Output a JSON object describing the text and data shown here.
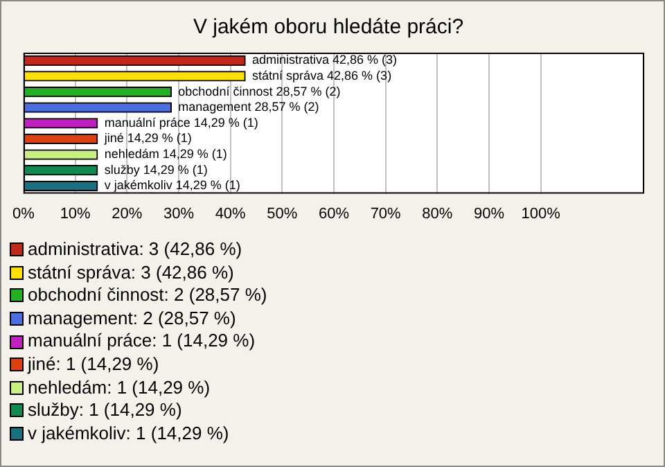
{
  "chart_data": {
    "type": "bar",
    "orientation": "horizontal",
    "title": "V jakém oboru hledáte práci?",
    "categories": [
      "administrativa",
      "státní správa",
      "obchodní činnost",
      "management",
      "manuální práce",
      "jiné",
      "nehledám",
      "služby",
      "v jakémkoliv"
    ],
    "values": [
      42.86,
      42.86,
      28.57,
      28.57,
      14.29,
      14.29,
      14.29,
      14.29,
      14.29
    ],
    "colors": [
      "#c0281c",
      "#ffe000",
      "#20b020",
      "#4a6fe0",
      "#c020c0",
      "#e04010",
      "#c8f080",
      "#108850",
      "#1a7080"
    ],
    "value_labels": [
      "42,86 % (3)",
      "42,86 % (3)",
      "28,57 % (2)",
      "28,57 % (2)",
      "14,29 % (1)",
      "14,29 % (1)",
      "14,29 % (1)",
      "14,29 % (1)",
      "14,29 % (1)"
    ],
    "xlim": [
      0,
      120
    ],
    "xticks": [
      {
        "value": 0,
        "label": "0%"
      },
      {
        "value": 10,
        "label": "10%"
      },
      {
        "value": 20,
        "label": "20%"
      },
      {
        "value": 30,
        "label": "30%"
      },
      {
        "value": 40,
        "label": "40%"
      },
      {
        "value": 50,
        "label": "50%"
      },
      {
        "value": 60,
        "label": "60%"
      },
      {
        "value": 70,
        "label": "70%"
      },
      {
        "value": 80,
        "label": "80%"
      },
      {
        "value": 90,
        "label": "90%"
      },
      {
        "value": 100,
        "label": "100%"
      }
    ],
    "grid": "x",
    "tick_labels": "x",
    "annotations": [
      "administrativa: 3 (42,86 %)",
      "státní správa: 3 (42,86 %)",
      "obchodní činnost: 2 (28,57 %)",
      "management: 2 (28,57 %)",
      "manuální práce: 1 (14,29 %)",
      "jiné: 1 (14,29 %)",
      "nehledám: 1 (14,29 %)",
      "služby: 1 (14,29 %)",
      "v jakémkoliv: 1 (14,29 %)"
    ]
  }
}
